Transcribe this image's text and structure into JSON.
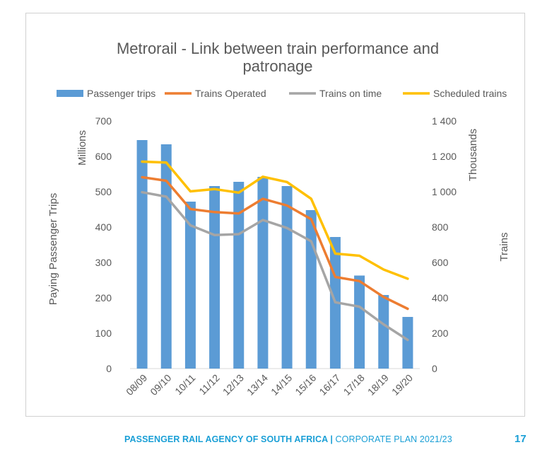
{
  "chart_data": {
    "type": "bar",
    "title_line1": "Metrorail - Link between train performance and",
    "title_line2": "patronage",
    "categories": [
      "08/09",
      "09/10",
      "10/11",
      "11/12",
      "12/13",
      "13/14",
      "14/15",
      "15/16",
      "16/17",
      "17/18",
      "18/19",
      "19/20"
    ],
    "series": [
      {
        "name": "Passenger trips",
        "kind": "bar",
        "axis": "left",
        "color": "#5b9bd5",
        "values": [
          646,
          634,
          472,
          516,
          528,
          542,
          516,
          448,
          372,
          263,
          208,
          146
        ]
      },
      {
        "name": "Trains Operated",
        "kind": "line",
        "axis": "right",
        "color": "#ed7d31",
        "values": [
          1082,
          1062,
          902,
          885,
          877,
          960,
          922,
          845,
          518,
          495,
          405,
          338
        ]
      },
      {
        "name": "Trains on time",
        "kind": "line",
        "axis": "right",
        "color": "#a5a5a5",
        "values": [
          997,
          972,
          810,
          755,
          760,
          840,
          795,
          720,
          375,
          350,
          250,
          162
        ]
      },
      {
        "name": "Scheduled trains",
        "kind": "line",
        "axis": "right",
        "color": "#ffc000",
        "values": [
          1170,
          1165,
          1002,
          1015,
          995,
          1085,
          1055,
          960,
          650,
          638,
          560,
          508
        ]
      }
    ],
    "y_left": {
      "label": "Paying Passenger Trips",
      "unit": "Millions",
      "min": 0,
      "max": 700,
      "ticks": [
        "0",
        "100",
        "200",
        "300",
        "400",
        "500",
        "600",
        "700"
      ]
    },
    "y_right": {
      "label": "Trains",
      "unit": "Thousands",
      "min": 0,
      "max": 1400,
      "ticks": [
        "0",
        "200",
        "400",
        "600",
        "800",
        "1 000",
        "1 200",
        "1 400"
      ]
    },
    "grid": false,
    "legend_position": "top"
  },
  "footer": {
    "org": "PASSENGER RAIL AGENCY OF SOUTH AFRICA",
    "separator": " | ",
    "plan": "CORPORATE PLAN 2021/23",
    "page_number": "17"
  }
}
